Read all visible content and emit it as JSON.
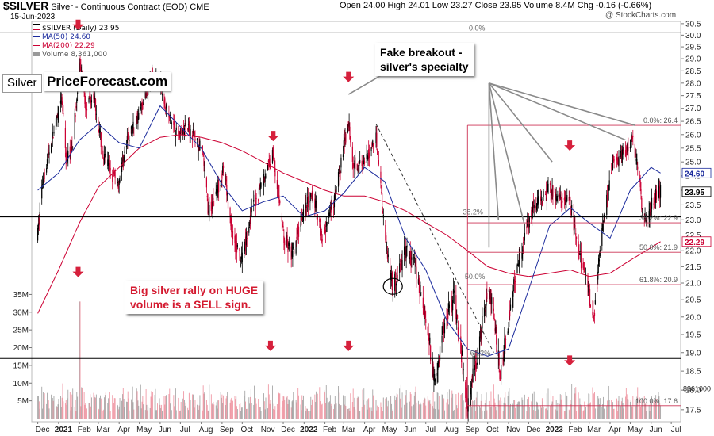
{
  "header": {
    "symbol": "$SILVER",
    "name": "Silver - Continuous Contract (EOD)",
    "exchange": "CME",
    "date": "15-Jun-2023",
    "ohlc": "Open 24.00  High 24.01  Low 23.27  Close 23.95  Volume 8.4M  Chg -0.16 (-0.66%)",
    "watermark": "@ StockCharts.com"
  },
  "legend": {
    "main": "$SILVER (Daily) 23.95",
    "ma50": "MA(50) 24.60",
    "ma200": "MA(200) 22.29",
    "volume": "Volume 8,361,000"
  },
  "overlay": {
    "badge": "Silver",
    "brand": "PriceForecast.com",
    "note_breakout": "Fake breakout -\nsilver's specialty",
    "note_volume": "Big silver rally on HUGE\nvolume is a SELL sign."
  },
  "colors": {
    "up": "#000000",
    "down": "#cc0033",
    "ma50": "#1a2a9c",
    "ma200": "#cc0033",
    "fib": "#cc3355",
    "vol_up": "#a7a7a7",
    "vol_down": "#f09aa6",
    "arrow": "#d6203c",
    "note_text": "#d41a30"
  },
  "chart_data": {
    "type": "candlestick",
    "y_scale": "log",
    "ylim": [
      17.2,
      30.6
    ],
    "yticks": [
      17.5,
      18.0,
      18.5,
      19.0,
      19.5,
      20.0,
      20.5,
      21.0,
      21.5,
      22.0,
      22.5,
      23.0,
      23.5,
      24.0,
      24.5,
      25.0,
      25.5,
      26.0,
      26.5,
      27.0,
      27.5,
      28.0,
      28.5,
      29.0,
      29.5,
      30.0,
      30.5
    ],
    "last_price_label": "23.95",
    "price_tags": [
      {
        "label": "24.60",
        "value": 24.6,
        "color": "#1a2a9c"
      },
      {
        "label": "23.95",
        "value": 23.95,
        "color": "#000000"
      },
      {
        "label": "22.29",
        "value": 22.29,
        "color": "#cc0033"
      }
    ],
    "x_labels": [
      "Dec",
      "2021",
      "Feb",
      "Mar",
      "Apr",
      "May",
      "Jun",
      "Jul",
      "Aug",
      "Sep",
      "Oct",
      "Nov",
      "Dec",
      "2022",
      "Feb",
      "Mar",
      "Apr",
      "May",
      "Jun",
      "Jul",
      "Aug",
      "Sep",
      "Oct",
      "Nov",
      "Dec",
      "2023",
      "Feb",
      "Mar",
      "Apr",
      "May",
      "Jun",
      "Jul"
    ],
    "x_labels_bold": [
      "2021",
      "2022",
      "2023"
    ],
    "price_path": [
      {
        "d": "2020-12-01",
        "v": 22.5
      },
      {
        "d": "2020-12-08",
        "v": 24.3
      },
      {
        "d": "2020-12-18",
        "v": 25.4
      },
      {
        "d": "2021-01-06",
        "v": 27.3
      },
      {
        "d": "2021-01-12",
        "v": 25.1
      },
      {
        "d": "2021-01-22",
        "v": 25.6
      },
      {
        "d": "2021-02-01",
        "v": 28.9
      },
      {
        "d": "2021-02-10",
        "v": 27.1
      },
      {
        "d": "2021-02-22",
        "v": 27.6
      },
      {
        "d": "2021-03-08",
        "v": 25.2
      },
      {
        "d": "2021-03-30",
        "v": 24.2
      },
      {
        "d": "2021-04-15",
        "v": 25.9
      },
      {
        "d": "2021-05-01",
        "v": 26.8
      },
      {
        "d": "2021-05-18",
        "v": 28.2
      },
      {
        "d": "2021-06-01",
        "v": 28.0
      },
      {
        "d": "2021-06-15",
        "v": 26.6
      },
      {
        "d": "2021-06-28",
        "v": 26.0
      },
      {
        "d": "2021-07-14",
        "v": 26.3
      },
      {
        "d": "2021-08-03",
        "v": 25.3
      },
      {
        "d": "2021-08-12",
        "v": 23.2
      },
      {
        "d": "2021-08-24",
        "v": 24.0
      },
      {
        "d": "2021-09-03",
        "v": 24.7
      },
      {
        "d": "2021-09-16",
        "v": 22.6
      },
      {
        "d": "2021-09-29",
        "v": 21.6
      },
      {
        "d": "2021-10-15",
        "v": 23.3
      },
      {
        "d": "2021-10-28",
        "v": 24.1
      },
      {
        "d": "2021-11-16",
        "v": 25.3
      },
      {
        "d": "2021-12-02",
        "v": 22.4
      },
      {
        "d": "2021-12-15",
        "v": 21.8
      },
      {
        "d": "2021-12-31",
        "v": 23.3
      },
      {
        "d": "2022-01-15",
        "v": 23.8
      },
      {
        "d": "2022-01-28",
        "v": 22.4
      },
      {
        "d": "2022-02-15",
        "v": 23.6
      },
      {
        "d": "2022-03-08",
        "v": 26.5
      },
      {
        "d": "2022-03-15",
        "v": 25.0
      },
      {
        "d": "2022-03-31",
        "v": 24.8
      },
      {
        "d": "2022-04-18",
        "v": 26.0
      },
      {
        "d": "2022-05-01",
        "v": 22.6
      },
      {
        "d": "2022-05-13",
        "v": 20.8
      },
      {
        "d": "2022-05-31",
        "v": 22.0
      },
      {
        "d": "2022-06-15",
        "v": 21.6
      },
      {
        "d": "2022-07-01",
        "v": 19.9
      },
      {
        "d": "2022-07-14",
        "v": 18.3
      },
      {
        "d": "2022-08-01",
        "v": 20.1
      },
      {
        "d": "2022-08-12",
        "v": 20.6
      },
      {
        "d": "2022-09-01",
        "v": 17.6
      },
      {
        "d": "2022-09-20",
        "v": 19.4
      },
      {
        "d": "2022-10-03",
        "v": 21.0
      },
      {
        "d": "2022-10-20",
        "v": 18.4
      },
      {
        "d": "2022-11-15",
        "v": 21.7
      },
      {
        "d": "2022-12-05",
        "v": 23.3
      },
      {
        "d": "2022-12-30",
        "v": 24.0
      },
      {
        "d": "2023-01-15",
        "v": 23.7
      },
      {
        "d": "2023-01-31",
        "v": 23.6
      },
      {
        "d": "2023-02-15",
        "v": 21.8
      },
      {
        "d": "2023-03-08",
        "v": 20.1
      },
      {
        "d": "2023-03-20",
        "v": 22.5
      },
      {
        "d": "2023-04-05",
        "v": 25.0
      },
      {
        "d": "2023-04-20",
        "v": 25.2
      },
      {
        "d": "2023-05-05",
        "v": 25.9
      },
      {
        "d": "2023-05-18",
        "v": 23.6
      },
      {
        "d": "2023-05-26",
        "v": 22.9
      },
      {
        "d": "2023-06-05",
        "v": 23.7
      },
      {
        "d": "2023-06-15",
        "v": 23.95
      }
    ],
    "ma50_path": [
      {
        "d": "2020-12-01",
        "v": 24.0
      },
      {
        "d": "2021-01-01",
        "v": 24.6
      },
      {
        "d": "2021-02-01",
        "v": 25.8
      },
      {
        "d": "2021-03-01",
        "v": 26.4
      },
      {
        "d": "2021-04-01",
        "v": 25.7
      },
      {
        "d": "2021-05-01",
        "v": 25.5
      },
      {
        "d": "2021-06-01",
        "v": 27.1
      },
      {
        "d": "2021-07-01",
        "v": 26.3
      },
      {
        "d": "2021-08-01",
        "v": 25.5
      },
      {
        "d": "2021-09-01",
        "v": 24.2
      },
      {
        "d": "2021-10-01",
        "v": 23.3
      },
      {
        "d": "2021-11-01",
        "v": 23.6
      },
      {
        "d": "2021-12-01",
        "v": 23.8
      },
      {
        "d": "2022-01-01",
        "v": 23.1
      },
      {
        "d": "2022-02-01",
        "v": 23.3
      },
      {
        "d": "2022-03-01",
        "v": 23.9
      },
      {
        "d": "2022-04-01",
        "v": 24.8
      },
      {
        "d": "2022-05-01",
        "v": 24.3
      },
      {
        "d": "2022-06-01",
        "v": 22.4
      },
      {
        "d": "2022-07-01",
        "v": 21.4
      },
      {
        "d": "2022-08-01",
        "v": 19.9
      },
      {
        "d": "2022-09-01",
        "v": 19.1
      },
      {
        "d": "2022-10-01",
        "v": 18.9
      },
      {
        "d": "2022-11-01",
        "v": 19.1
      },
      {
        "d": "2022-12-01",
        "v": 20.8
      },
      {
        "d": "2023-01-01",
        "v": 22.8
      },
      {
        "d": "2023-02-01",
        "v": 23.4
      },
      {
        "d": "2023-03-01",
        "v": 22.9
      },
      {
        "d": "2023-04-01",
        "v": 22.4
      },
      {
        "d": "2023-05-01",
        "v": 24.0
      },
      {
        "d": "2023-06-01",
        "v": 24.8
      },
      {
        "d": "2023-06-15",
        "v": 24.6
      }
    ],
    "ma200_path": [
      {
        "d": "2020-12-01",
        "v": 20.1
      },
      {
        "d": "2021-01-01",
        "v": 21.4
      },
      {
        "d": "2021-02-01",
        "v": 22.9
      },
      {
        "d": "2021-03-01",
        "v": 24.1
      },
      {
        "d": "2021-04-01",
        "v": 24.8
      },
      {
        "d": "2021-05-01",
        "v": 25.5
      },
      {
        "d": "2021-06-01",
        "v": 25.9
      },
      {
        "d": "2021-07-01",
        "v": 26.0
      },
      {
        "d": "2021-08-01",
        "v": 25.9
      },
      {
        "d": "2021-09-01",
        "v": 25.7
      },
      {
        "d": "2021-10-01",
        "v": 25.4
      },
      {
        "d": "2021-11-01",
        "v": 25.0
      },
      {
        "d": "2021-12-01",
        "v": 24.6
      },
      {
        "d": "2022-01-01",
        "v": 24.3
      },
      {
        "d": "2022-02-01",
        "v": 24.0
      },
      {
        "d": "2022-03-01",
        "v": 23.8
      },
      {
        "d": "2022-04-01",
        "v": 23.8
      },
      {
        "d": "2022-05-01",
        "v": 23.6
      },
      {
        "d": "2022-06-01",
        "v": 23.3
      },
      {
        "d": "2022-07-01",
        "v": 22.9
      },
      {
        "d": "2022-08-01",
        "v": 22.5
      },
      {
        "d": "2022-09-01",
        "v": 22.0
      },
      {
        "d": "2022-10-01",
        "v": 21.5
      },
      {
        "d": "2022-11-01",
        "v": 21.3
      },
      {
        "d": "2022-12-01",
        "v": 21.2
      },
      {
        "d": "2023-01-01",
        "v": 21.3
      },
      {
        "d": "2023-02-01",
        "v": 21.4
      },
      {
        "d": "2023-03-01",
        "v": 21.2
      },
      {
        "d": "2023-04-01",
        "v": 21.3
      },
      {
        "d": "2023-05-01",
        "v": 21.7
      },
      {
        "d": "2023-06-01",
        "v": 22.1
      },
      {
        "d": "2023-06-15",
        "v": 22.29
      }
    ],
    "volume": {
      "yticks": [
        5,
        10,
        15,
        20,
        25,
        30,
        35
      ],
      "unit_suffix": "M",
      "ylim_millions": [
        0,
        38
      ],
      "typical_millions": [
        2,
        9
      ],
      "spike": {
        "d": "2021-02-01",
        "millions": 33
      },
      "last_label": "8361000"
    },
    "horizontal_lines": [
      {
        "value": 30.1,
        "width": 1.2
      },
      {
        "value": 23.1,
        "width": 1.2
      },
      {
        "value": 18.85,
        "width": 2
      }
    ],
    "fibonacci": {
      "from": "2022-09-01",
      "levels": [
        {
          "label": "0.0%: 26.4",
          "value": 26.35
        },
        {
          "label": "38.2%: 22.9",
          "value": 22.9
        },
        {
          "label": "50.0%: 21.9",
          "value": 21.95
        },
        {
          "label": "61.8%: 20.9",
          "value": 20.95
        },
        {
          "label": "100.0%: 17.6",
          "value": 17.6
        }
      ]
    },
    "fib_top_labels": [
      {
        "label": "0.0%",
        "d": "2022-09-03",
        "value": 30.1
      },
      {
        "label": "38.2%",
        "d": "2022-08-25",
        "value": 23.1
      },
      {
        "label": "50.0%",
        "d": "2022-08-28",
        "value": 21.05
      },
      {
        "label": "68.2%",
        "d": "2022-09-05",
        "value": 18.85
      }
    ],
    "down_arrows": [
      {
        "d": "2021-01-30",
        "value": 30.4
      },
      {
        "d": "2022-03-08",
        "value": 28.2
      },
      {
        "d": "2021-11-16",
        "value": 25.9
      },
      {
        "d": "2023-01-31",
        "value": 25.55
      },
      {
        "d": "2021-01-30",
        "value": 21.3
      },
      {
        "d": "2021-11-12",
        "value": 19.15
      },
      {
        "d": "2022-03-08",
        "value": 19.15
      },
      {
        "d": "2023-01-31",
        "value": 18.75
      }
    ],
    "dashed_trendline": [
      {
        "d": "2022-04-18",
        "v": 26.4
      },
      {
        "d": "2022-10-10",
        "v": 19.0
      }
    ],
    "circle_marker": {
      "d": "2022-05-13",
      "v": 20.9
    },
    "callout_lines": [
      {
        "from": {
          "d": "2022-03-08",
          "v": 27.55
        },
        "to": {
          "d": "2022-05-01",
          "v": 28.4
        }
      },
      {
        "from": {
          "d": "2022-10-03",
          "v": 22.1
        },
        "to": {
          "d": "2022-10-03",
          "v": 28.0
        }
      },
      {
        "from": {
          "d": "2022-10-17",
          "v": 23.0
        },
        "to": {
          "d": "2022-10-03",
          "v": 28.0
        }
      },
      {
        "from": {
          "d": "2022-11-24",
          "v": 22.9
        },
        "to": {
          "d": "2022-10-03",
          "v": 28.0
        }
      },
      {
        "from": {
          "d": "2023-01-05",
          "v": 25.0
        },
        "to": {
          "d": "2022-10-03",
          "v": 28.0
        }
      },
      {
        "from": {
          "d": "2023-04-24",
          "v": 25.8
        },
        "to": {
          "d": "2022-10-03",
          "v": 28.0
        }
      },
      {
        "from": {
          "d": "2023-05-08",
          "v": 26.35
        },
        "to": {
          "d": "2022-10-03",
          "v": 28.0
        }
      }
    ]
  }
}
